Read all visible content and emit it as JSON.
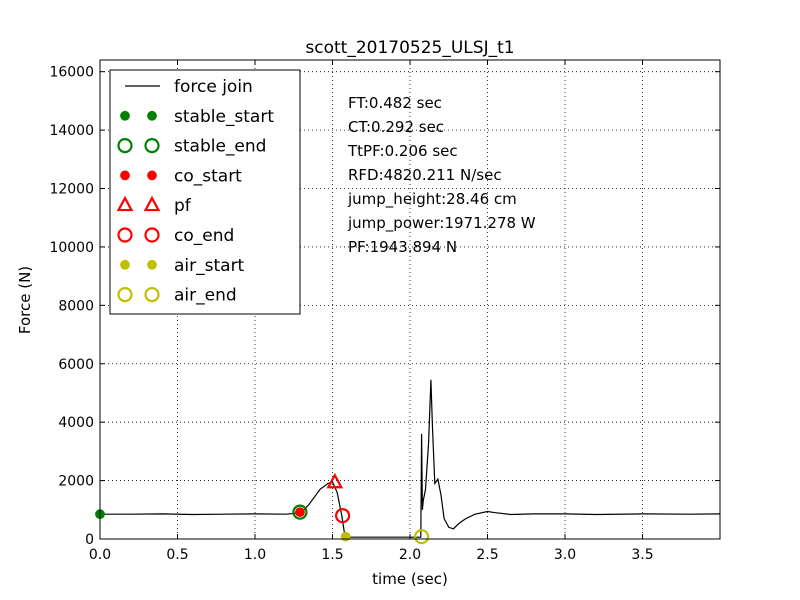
{
  "chart_data": {
    "type": "line",
    "title": "scott_20170525_ULSJ_t1",
    "xlabel": "time (sec)",
    "ylabel": "Force (N)",
    "xlim": [
      0,
      4.0
    ],
    "ylim": [
      0,
      16400
    ],
    "x_ticks": [
      0.0,
      0.5,
      1.0,
      1.5,
      2.0,
      2.5,
      3.0,
      3.5
    ],
    "x_tick_labels": [
      "0.0",
      "0.5",
      "1.0",
      "1.5",
      "2.0",
      "2.5",
      "3.0",
      "3.5"
    ],
    "y_ticks": [
      0,
      2000,
      4000,
      6000,
      8000,
      10000,
      12000,
      14000,
      16000
    ],
    "y_tick_labels": [
      "0",
      "2000",
      "4000",
      "6000",
      "8000",
      "10000",
      "12000",
      "14000",
      "16000"
    ],
    "grid": true,
    "legend_position": "top-left",
    "series": [
      {
        "name": "force join",
        "color": "#000000",
        "x": [
          0.0,
          0.2,
          0.4,
          0.6,
          0.8,
          1.0,
          1.2,
          1.3,
          1.35,
          1.42,
          1.47,
          1.5,
          1.53,
          1.56,
          1.58,
          1.6,
          1.8,
          2.0,
          2.07,
          2.075,
          2.08,
          2.085,
          2.1,
          2.12,
          2.135,
          2.145,
          2.16,
          2.18,
          2.2,
          2.22,
          2.25,
          2.28,
          2.32,
          2.36,
          2.42,
          2.5,
          2.55,
          2.65,
          2.8,
          3.0,
          3.2,
          3.5,
          3.8,
          4.0
        ],
        "y": [
          850,
          850,
          860,
          840,
          850,
          860,
          850,
          900,
          1200,
          1700,
          1900,
          1950,
          1600,
          800,
          100,
          60,
          60,
          60,
          60,
          3600,
          1000,
          1300,
          1700,
          3300,
          5450,
          3800,
          1900,
          2050,
          1500,
          700,
          400,
          350,
          550,
          700,
          850,
          940,
          900,
          840,
          860,
          860,
          840,
          860,
          850,
          860
        ]
      }
    ],
    "markers": [
      {
        "name": "stable_start",
        "shape": "dot",
        "color": "#008000",
        "points": [
          [
            0.0,
            850
          ]
        ]
      },
      {
        "name": "stable_end",
        "shape": "circle",
        "color": "#008000",
        "points": [
          [
            1.29,
            920
          ]
        ]
      },
      {
        "name": "co_start",
        "shape": "dot",
        "color": "#ff0000",
        "points": [
          [
            1.29,
            920
          ]
        ]
      },
      {
        "name": "pf",
        "shape": "triangle",
        "color": "#ff0000",
        "points": [
          [
            1.515,
            1940
          ]
        ]
      },
      {
        "name": "co_end",
        "shape": "circle",
        "color": "#ff0000",
        "points": [
          [
            1.565,
            800
          ]
        ]
      },
      {
        "name": "air_start",
        "shape": "dot",
        "color": "#bfbf00",
        "points": [
          [
            1.585,
            80
          ]
        ]
      },
      {
        "name": "air_end",
        "shape": "circle",
        "color": "#bfbf00",
        "points": [
          [
            2.075,
            80
          ]
        ]
      }
    ],
    "legend": [
      "force join",
      "stable_start",
      "stable_end",
      "co_start",
      "pf",
      "co_end",
      "air_start",
      "air_end"
    ],
    "annotations": [
      "FT:0.482 sec",
      "CT:0.292 sec",
      "TtPF:0.206 sec",
      "RFD:4820.211 N/sec",
      "jump_height:28.46 cm",
      "jump_power:1971.278 W",
      "PF:1943.894 N"
    ]
  }
}
